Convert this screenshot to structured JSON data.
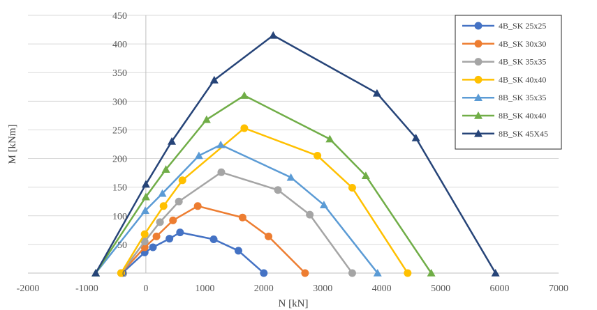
{
  "chart_data": {
    "type": "line",
    "title": "",
    "xlabel": "N [kN]",
    "ylabel": "M [kNm]",
    "xlim": [
      -2000,
      7000
    ],
    "ylim": [
      0,
      450
    ],
    "xticks": [
      -2000,
      -1000,
      0,
      1000,
      2000,
      3000,
      4000,
      5000,
      6000,
      7000
    ],
    "yticks": [
      0,
      50,
      100,
      150,
      200,
      250,
      300,
      350,
      400,
      450
    ],
    "grid": "horizontal",
    "legend": "right",
    "series": [
      {
        "name": "4B_SK 25x25",
        "color": "#4472c4",
        "marker": "circle",
        "points": [
          [
            -400,
            0
          ],
          [
            -20,
            36
          ],
          [
            120,
            45
          ],
          [
            400,
            60
          ],
          [
            580,
            71
          ],
          [
            1150,
            59
          ],
          [
            1570,
            39
          ],
          [
            2000,
            0
          ]
        ]
      },
      {
        "name": "4B_SK 30x30",
        "color": "#ed7d31",
        "marker": "circle",
        "points": [
          [
            -420,
            0
          ],
          [
            -20,
            45
          ],
          [
            180,
            64
          ],
          [
            460,
            92
          ],
          [
            880,
            117
          ],
          [
            1640,
            97
          ],
          [
            2080,
            64
          ],
          [
            2700,
            0
          ]
        ]
      },
      {
        "name": "4B_SK 35x35",
        "color": "#a5a5a5",
        "marker": "circle",
        "points": [
          [
            -420,
            0
          ],
          [
            -20,
            55
          ],
          [
            240,
            89
          ],
          [
            560,
            125
          ],
          [
            1280,
            176
          ],
          [
            2240,
            145
          ],
          [
            2780,
            102
          ],
          [
            3500,
            0
          ]
        ]
      },
      {
        "name": "4B_SK 40x40",
        "color": "#ffc000",
        "marker": "circle",
        "points": [
          [
            -420,
            0
          ],
          [
            -20,
            68
          ],
          [
            300,
            117
          ],
          [
            620,
            162
          ],
          [
            1670,
            253
          ],
          [
            2910,
            205
          ],
          [
            3500,
            149
          ],
          [
            4440,
            0
          ]
        ]
      },
      {
        "name": "8B_SK 35x35",
        "color": "#5b9bd5",
        "marker": "triangle",
        "points": [
          [
            -850,
            0
          ],
          [
            -10,
            109
          ],
          [
            280,
            139
          ],
          [
            900,
            205
          ],
          [
            1270,
            224
          ],
          [
            2460,
            167
          ],
          [
            3020,
            119
          ],
          [
            3930,
            0
          ]
        ]
      },
      {
        "name": "8B_SK 40x40",
        "color": "#70ad47",
        "marker": "triangle",
        "points": [
          [
            -850,
            0
          ],
          [
            0,
            133
          ],
          [
            340,
            181
          ],
          [
            1030,
            268
          ],
          [
            1670,
            310
          ],
          [
            3120,
            234
          ],
          [
            3730,
            170
          ],
          [
            4840,
            0
          ]
        ]
      },
      {
        "name": "8B_SK 45X45",
        "color": "#264478",
        "marker": "triangle",
        "points": [
          [
            -850,
            0
          ],
          [
            0,
            155
          ],
          [
            440,
            230
          ],
          [
            1160,
            337
          ],
          [
            2160,
            415
          ],
          [
            3920,
            314
          ],
          [
            4580,
            236
          ],
          [
            5930,
            0
          ]
        ]
      }
    ]
  }
}
